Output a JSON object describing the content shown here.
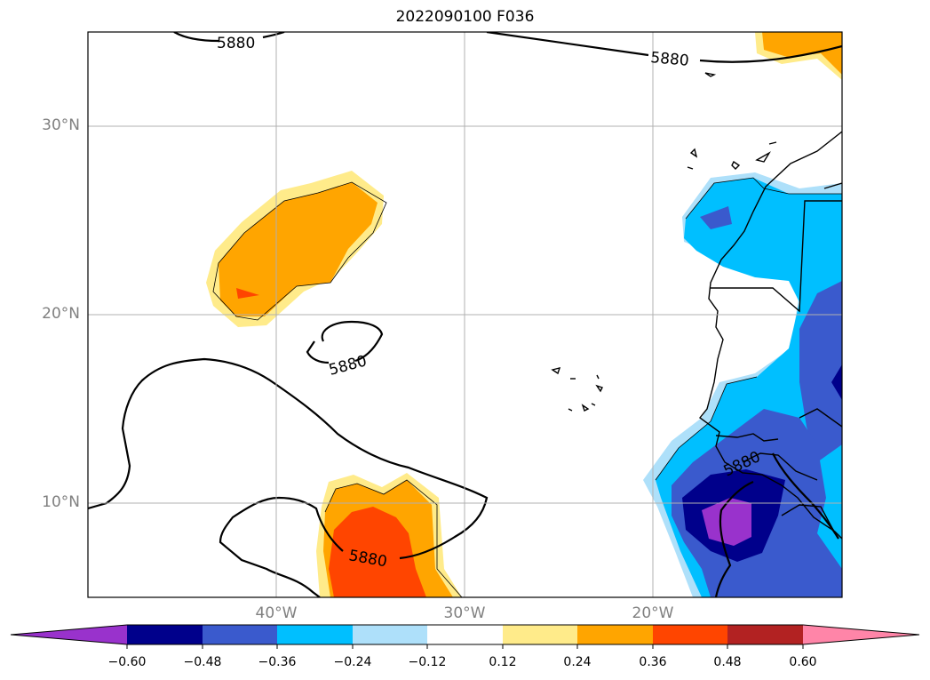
{
  "title": "2022090100 F036",
  "contour_label": "5880",
  "lat_labels": [
    "30°N",
    "20°N",
    "10°N"
  ],
  "lon_labels": [
    "40°W",
    "30°W",
    "20°W"
  ],
  "colorbar": {
    "ticks": [
      "−0.60",
      "−0.48",
      "−0.36",
      "−0.24",
      "−0.12",
      "0.12",
      "0.24",
      "0.36",
      "0.48",
      "0.60"
    ],
    "colors": [
      "#9932cc",
      "#00008b",
      "#3a5acd",
      "#00bfff",
      "#aee0fa",
      "#ffffff",
      "#ffeb8a",
      "#ffa500",
      "#ff4500",
      "#b22222",
      "#ff85a8"
    ]
  }
}
